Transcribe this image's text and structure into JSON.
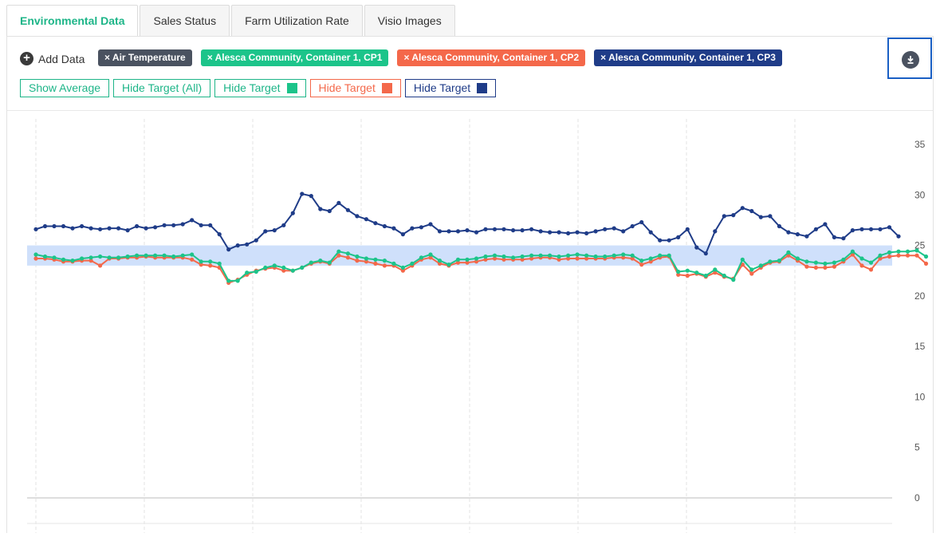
{
  "tabs": [
    {
      "label": "Environmental Data",
      "active": true
    },
    {
      "label": "Sales Status",
      "active": false
    },
    {
      "label": "Farm Utilization Rate",
      "active": false
    },
    {
      "label": "Visio Images",
      "active": false
    }
  ],
  "toolbar": {
    "add_data_label": "Add Data",
    "chips": [
      {
        "label": "× Air Temperature",
        "color": "#4a5260"
      },
      {
        "label": "× Alesca Community, Container 1, CP1",
        "color": "#1cc48a"
      },
      {
        "label": "× Alesca Community, Container 1, CP2",
        "color": "#f4684a"
      },
      {
        "label": "× Alesca Community, Container 1, CP3",
        "color": "#1f3c88"
      }
    ],
    "buttons": [
      {
        "label": "Show Average",
        "color": "#1db588",
        "swatch": null
      },
      {
        "label": "Hide Target (All)",
        "color": "#1db588",
        "swatch": null
      },
      {
        "label": "Hide Target",
        "color": "#1db588",
        "swatch": "#1cc48a"
      },
      {
        "label": "Hide Target",
        "color": "#f4684a",
        "swatch": "#f4684a"
      },
      {
        "label": "Hide Target",
        "color": "#1f3c88",
        "swatch": "#1f3c88"
      }
    ],
    "download_icon": "download-icon"
  },
  "chart_data": {
    "type": "line",
    "title": "",
    "xlabel": "",
    "ylabel": "",
    "ylim": [
      0,
      35
    ],
    "yticks": [
      0,
      5,
      10,
      15,
      20,
      25,
      30,
      35
    ],
    "x_axis_labels": "not shown",
    "target_band": {
      "low": 23,
      "high": 25,
      "color": "#cfe0fb"
    },
    "grid": "vertical dashed",
    "series": [
      {
        "color": "#1f3c88",
        "values": [
          26.6,
          26.9,
          26.9,
          26.9,
          26.7,
          26.9,
          26.7,
          26.6,
          26.7,
          26.7,
          26.5,
          26.9,
          26.7,
          26.8,
          27.0,
          27.0,
          27.1,
          27.5,
          27.0,
          27.0,
          26.1,
          24.6,
          25.0,
          25.1,
          25.5,
          26.4,
          26.5,
          27.0,
          28.2,
          30.1,
          29.9,
          28.6,
          28.4,
          29.2,
          28.5,
          27.9,
          27.6,
          27.2,
          26.9,
          26.7,
          26.1,
          26.7,
          26.8,
          27.1,
          26.4,
          26.4,
          26.4,
          26.5,
          26.3,
          26.6,
          26.6,
          26.6,
          26.5,
          26.5,
          26.6,
          26.4,
          26.3,
          26.3,
          26.2,
          26.3,
          26.2,
          26.4,
          26.6,
          26.7,
          26.4,
          26.9,
          27.3,
          26.3,
          25.5,
          25.5,
          25.8,
          26.6,
          24.8,
          24.2,
          26.4,
          27.9,
          28.0,
          28.7,
          28.4,
          27.8,
          27.9,
          26.9,
          26.3,
          26.1,
          25.9,
          26.6,
          27.1,
          25.8,
          25.7,
          26.5,
          26.6,
          26.6,
          26.6,
          26.8,
          25.9
        ]
      },
      {
        "color": "#1cc48a",
        "values": [
          24.1,
          23.9,
          23.8,
          23.6,
          23.5,
          23.7,
          23.8,
          23.9,
          23.8,
          23.8,
          23.9,
          24.0,
          24.0,
          24.0,
          24.0,
          23.9,
          24.0,
          24.1,
          23.4,
          23.4,
          23.2,
          21.5,
          21.5,
          22.3,
          22.4,
          22.8,
          23.0,
          22.8,
          22.5,
          22.8,
          23.3,
          23.5,
          23.3,
          24.4,
          24.2,
          23.9,
          23.7,
          23.6,
          23.5,
          23.2,
          22.8,
          23.2,
          23.8,
          24.1,
          23.5,
          23.1,
          23.6,
          23.6,
          23.7,
          23.9,
          24.0,
          23.9,
          23.8,
          23.9,
          24.0,
          24.0,
          24.0,
          23.9,
          24.0,
          24.1,
          24.0,
          23.9,
          23.9,
          24.0,
          24.1,
          24.0,
          23.5,
          23.7,
          24.0,
          24.0,
          22.4,
          22.5,
          22.3,
          22.0,
          22.6,
          22.0,
          21.6,
          23.6,
          22.6,
          23.0,
          23.4,
          23.5,
          24.3,
          23.7,
          23.4,
          23.3,
          23.2,
          23.3,
          23.6,
          24.4,
          23.7,
          23.3,
          24.0,
          24.3,
          24.4,
          24.4,
          24.5,
          23.9
        ]
      },
      {
        "color": "#f4684a",
        "values": [
          23.7,
          23.7,
          23.6,
          23.4,
          23.4,
          23.5,
          23.5,
          23.0,
          23.7,
          23.7,
          23.8,
          23.8,
          23.9,
          23.8,
          23.8,
          23.8,
          23.8,
          23.6,
          23.1,
          23.0,
          22.8,
          21.3,
          21.6,
          22.1,
          22.5,
          22.7,
          22.8,
          22.5,
          22.5,
          22.8,
          23.2,
          23.4,
          23.2,
          24.0,
          23.8,
          23.5,
          23.4,
          23.2,
          23.0,
          23.0,
          22.5,
          23.0,
          23.6,
          23.8,
          23.2,
          23.0,
          23.3,
          23.3,
          23.4,
          23.6,
          23.7,
          23.6,
          23.6,
          23.6,
          23.7,
          23.8,
          23.8,
          23.6,
          23.7,
          23.7,
          23.7,
          23.7,
          23.7,
          23.8,
          23.8,
          23.7,
          23.1,
          23.4,
          23.8,
          23.9,
          22.1,
          22.0,
          22.2,
          21.9,
          22.3,
          21.9,
          21.7,
          23.1,
          22.2,
          22.8,
          23.3,
          23.4,
          24.0,
          23.5,
          22.9,
          22.8,
          22.8,
          22.9,
          23.4,
          24.1,
          23.0,
          22.6,
          23.7,
          23.9,
          24.0,
          24.0,
          24.0,
          23.2
        ]
      }
    ]
  }
}
